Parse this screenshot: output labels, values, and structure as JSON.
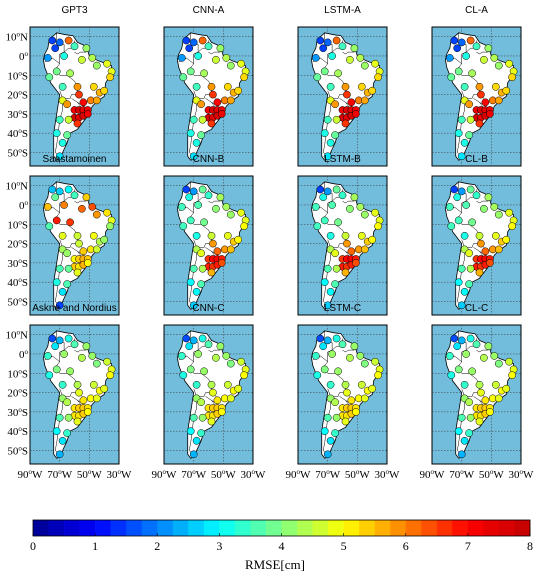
{
  "figure": {
    "panels": [
      {
        "title": "GPT3",
        "stations": "A"
      },
      {
        "title": "CNN-A",
        "stations": "A"
      },
      {
        "title": "LSTM-A",
        "stations": "A"
      },
      {
        "title": "CL-A",
        "stations": "A"
      },
      {
        "title": "Saastamoinen",
        "stations": "S"
      },
      {
        "title": "CNN-B",
        "stations": "B"
      },
      {
        "title": "LSTM-B",
        "stations": "B"
      },
      {
        "title": "CL-B",
        "stations": "B"
      },
      {
        "title": "Askne and Nordius",
        "stations": "C"
      },
      {
        "title": "CNN-C",
        "stations": "C"
      },
      {
        "title": "LSTM-C",
        "stations": "C"
      },
      {
        "title": "CL-C",
        "stations": "C"
      }
    ],
    "lat_ticks": [
      {
        "value": 10,
        "label": "10",
        "deg": "o",
        "hem": "N"
      },
      {
        "value": 0,
        "label": "0",
        "deg": "o",
        "hem": ""
      },
      {
        "value": -10,
        "label": "10",
        "deg": "o",
        "hem": "S"
      },
      {
        "value": -20,
        "label": "20",
        "deg": "o",
        "hem": "S"
      },
      {
        "value": -30,
        "label": "30",
        "deg": "o",
        "hem": "S"
      },
      {
        "value": -40,
        "label": "40",
        "deg": "o",
        "hem": "S"
      },
      {
        "value": -50,
        "label": "50",
        "deg": "o",
        "hem": "S"
      }
    ],
    "lon_ticks": [
      {
        "value": -90,
        "label": "90",
        "deg": "o",
        "hem": "W"
      },
      {
        "value": -70,
        "label": "70",
        "deg": "o",
        "hem": "W"
      },
      {
        "value": -50,
        "label": "50",
        "deg": "o",
        "hem": "W"
      },
      {
        "value": -30,
        "label": "30",
        "deg": "o",
        "hem": "W"
      }
    ],
    "colorbar": {
      "title": "RMSE[cm]",
      "min": 0,
      "max": 8,
      "tick_labels": [
        "0",
        "1",
        "2",
        "3",
        "4",
        "5",
        "6",
        "7",
        "8"
      ],
      "colors": [
        "#00008f",
        "#0000ff",
        "#0080ff",
        "#00ffff",
        "#80ff80",
        "#ffff00",
        "#ff8000",
        "#ff0000",
        "#c00000"
      ]
    },
    "colors": {
      "ocean": "#73bddc",
      "land": "#ffffff",
      "border": "#000000"
    }
  },
  "chart_data": {
    "type": "map",
    "layout": "3 rows x 4 columns",
    "extent": {
      "lon": [
        -90,
        -30
      ],
      "lat": [
        -57,
        15
      ]
    },
    "color_scale": "RMSE [cm], 0 to 8",
    "stations": {
      "A": [
        [
          -75,
          8,
          1.5
        ],
        [
          -70,
          7,
          1.8
        ],
        [
          -73,
          4,
          1.5
        ],
        [
          -78,
          -1,
          2.2
        ],
        [
          -64,
          8,
          6.2
        ],
        [
          -60,
          5,
          3.5
        ],
        [
          -67,
          0,
          3.2
        ],
        [
          -52,
          4,
          4.2
        ],
        [
          -77,
          -11,
          3.8
        ],
        [
          -72,
          -8,
          3.9
        ],
        [
          -63,
          -9,
          4.3
        ],
        [
          -55,
          -2,
          4.6
        ],
        [
          -48,
          -1,
          4.4
        ],
        [
          -45,
          -5,
          4.2
        ],
        [
          -38,
          -4,
          4.8
        ],
        [
          -35,
          -8,
          4.8
        ],
        [
          -36,
          -11,
          5.3
        ],
        [
          -68,
          -16,
          3.5
        ],
        [
          -58,
          -16,
          5.8
        ],
        [
          -47,
          -16,
          5.3
        ],
        [
          -43,
          -19,
          5.6
        ],
        [
          -40,
          -18,
          5.3
        ],
        [
          -68,
          -23,
          4.8
        ],
        [
          -57,
          -20,
          6.6
        ],
        [
          -65,
          -25,
          5.8
        ],
        [
          -54,
          -24,
          7.0
        ],
        [
          -49,
          -23,
          6.0
        ],
        [
          -45,
          -23,
          5.7
        ],
        [
          -60,
          -28,
          7.2
        ],
        [
          -57,
          -28,
          7.6
        ],
        [
          -54,
          -28,
          7.4
        ],
        [
          -51,
          -28,
          7.2
        ],
        [
          -60,
          -32,
          7.6
        ],
        [
          -57,
          -32,
          7.4
        ],
        [
          -54,
          -31,
          7.6
        ],
        [
          -51,
          -30,
          7.2
        ],
        [
          -70,
          -33,
          3.5
        ],
        [
          -64,
          -33,
          4.6
        ],
        [
          -58,
          -35,
          6.6
        ],
        [
          -72,
          -40,
          3.2
        ],
        [
          -65,
          -41,
          3.8
        ],
        [
          -68,
          -45,
          3.2
        ],
        [
          -70,
          -52,
          2.8
        ]
      ],
      "S": [
        [
          -75,
          8,
          2.5
        ],
        [
          -70,
          7,
          2.6
        ],
        [
          -73,
          4,
          3.8
        ],
        [
          -78,
          -1,
          5.5
        ],
        [
          -64,
          8,
          3.0
        ],
        [
          -60,
          5,
          3.5
        ],
        [
          -67,
          0,
          6.0
        ],
        [
          -52,
          4,
          5.4
        ],
        [
          -77,
          -11,
          3.6
        ],
        [
          -72,
          -8,
          6.8
        ],
        [
          -63,
          -9,
          6.6
        ],
        [
          -55,
          -2,
          6.2
        ],
        [
          -48,
          -1,
          6.4
        ],
        [
          -45,
          -5,
          5.8
        ],
        [
          -38,
          -4,
          5.2
        ],
        [
          -35,
          -8,
          4.8
        ],
        [
          -36,
          -11,
          4.2
        ],
        [
          -68,
          -16,
          4.8
        ],
        [
          -58,
          -16,
          4.6
        ],
        [
          -47,
          -16,
          4.9
        ],
        [
          -43,
          -19,
          4.4
        ],
        [
          -40,
          -18,
          4.2
        ],
        [
          -68,
          -23,
          4.3
        ],
        [
          -57,
          -20,
          4.6
        ],
        [
          -65,
          -25,
          4.2
        ],
        [
          -54,
          -24,
          5.4
        ],
        [
          -49,
          -23,
          5.2
        ],
        [
          -45,
          -23,
          4.6
        ],
        [
          -60,
          -28,
          5.0
        ],
        [
          -57,
          -28,
          5.4
        ],
        [
          -54,
          -28,
          5.6
        ],
        [
          -51,
          -28,
          5.4
        ],
        [
          -60,
          -32,
          5.4
        ],
        [
          -57,
          -32,
          5.2
        ],
        [
          -54,
          -31,
          5.6
        ],
        [
          -51,
          -30,
          5.0
        ],
        [
          -70,
          -33,
          3.6
        ],
        [
          -64,
          -33,
          3.8
        ],
        [
          -58,
          -35,
          4.8
        ],
        [
          -72,
          -40,
          3.2
        ],
        [
          -65,
          -41,
          3.6
        ],
        [
          -68,
          -45,
          2.8
        ],
        [
          -70,
          -52,
          1.5
        ]
      ],
      "B": [
        [
          -75,
          8,
          1.5
        ],
        [
          -70,
          7,
          2.2
        ],
        [
          -73,
          4,
          3.2
        ],
        [
          -78,
          -1,
          3.5
        ],
        [
          -64,
          8,
          3.8
        ],
        [
          -60,
          5,
          3.4
        ],
        [
          -67,
          0,
          3.6
        ],
        [
          -52,
          4,
          4.3
        ],
        [
          -77,
          -11,
          3.5
        ],
        [
          -72,
          -8,
          3.5
        ],
        [
          -63,
          -9,
          3.9
        ],
        [
          -55,
          -2,
          4.1
        ],
        [
          -48,
          -1,
          4.3
        ],
        [
          -45,
          -5,
          4.2
        ],
        [
          -38,
          -4,
          4.8
        ],
        [
          -35,
          -8,
          4.8
        ],
        [
          -36,
          -11,
          5.0
        ],
        [
          -68,
          -16,
          3.2
        ],
        [
          -58,
          -16,
          4.6
        ],
        [
          -47,
          -16,
          4.8
        ],
        [
          -43,
          -19,
          5.4
        ],
        [
          -40,
          -18,
          5.0
        ],
        [
          -68,
          -23,
          4.4
        ],
        [
          -57,
          -20,
          5.8
        ],
        [
          -65,
          -25,
          4.8
        ],
        [
          -54,
          -24,
          6.2
        ],
        [
          -49,
          -23,
          5.8
        ],
        [
          -45,
          -23,
          5.5
        ],
        [
          -60,
          -28,
          6.6
        ],
        [
          -57,
          -28,
          7.0
        ],
        [
          -54,
          -28,
          7.0
        ],
        [
          -51,
          -28,
          6.8
        ],
        [
          -60,
          -32,
          6.8
        ],
        [
          -57,
          -32,
          6.6
        ],
        [
          -54,
          -31,
          6.8
        ],
        [
          -51,
          -30,
          6.4
        ],
        [
          -70,
          -33,
          3.6
        ],
        [
          -64,
          -33,
          4.4
        ],
        [
          -58,
          -35,
          5.6
        ],
        [
          -72,
          -40,
          3.0
        ],
        [
          -65,
          -41,
          3.6
        ],
        [
          -68,
          -45,
          3.0
        ],
        [
          -70,
          -52,
          2.6
        ]
      ],
      "C": [
        [
          -75,
          8,
          1.6
        ],
        [
          -70,
          7,
          2.4
        ],
        [
          -73,
          4,
          2.8
        ],
        [
          -78,
          -1,
          3.4
        ],
        [
          -64,
          8,
          3.2
        ],
        [
          -60,
          5,
          3.6
        ],
        [
          -67,
          0,
          4.2
        ],
        [
          -52,
          4,
          4.2
        ],
        [
          -77,
          -11,
          3.2
        ],
        [
          -72,
          -8,
          4.0
        ],
        [
          -63,
          -9,
          4.2
        ],
        [
          -55,
          -2,
          4.4
        ],
        [
          -48,
          -1,
          4.2
        ],
        [
          -45,
          -5,
          4.0
        ],
        [
          -38,
          -4,
          4.6
        ],
        [
          -35,
          -8,
          4.8
        ],
        [
          -36,
          -11,
          5.0
        ],
        [
          -68,
          -16,
          3.4
        ],
        [
          -58,
          -16,
          4.4
        ],
        [
          -47,
          -16,
          4.6
        ],
        [
          -43,
          -19,
          5.0
        ],
        [
          -40,
          -18,
          4.8
        ],
        [
          -68,
          -23,
          4.2
        ],
        [
          -57,
          -20,
          4.8
        ],
        [
          -65,
          -25,
          4.4
        ],
        [
          -54,
          -24,
          5.2
        ],
        [
          -49,
          -23,
          5.0
        ],
        [
          -45,
          -23,
          4.8
        ],
        [
          -60,
          -28,
          5.2
        ],
        [
          -57,
          -28,
          5.4
        ],
        [
          -54,
          -28,
          5.4
        ],
        [
          -51,
          -28,
          5.2
        ],
        [
          -60,
          -32,
          5.2
        ],
        [
          -57,
          -32,
          5.2
        ],
        [
          -54,
          -31,
          5.4
        ],
        [
          -51,
          -30,
          5.0
        ],
        [
          -70,
          -33,
          3.6
        ],
        [
          -64,
          -33,
          4.2
        ],
        [
          -58,
          -35,
          4.8
        ],
        [
          -72,
          -40,
          3.0
        ],
        [
          -65,
          -41,
          3.4
        ],
        [
          -68,
          -45,
          2.8
        ],
        [
          -70,
          -52,
          2.4
        ]
      ]
    }
  }
}
